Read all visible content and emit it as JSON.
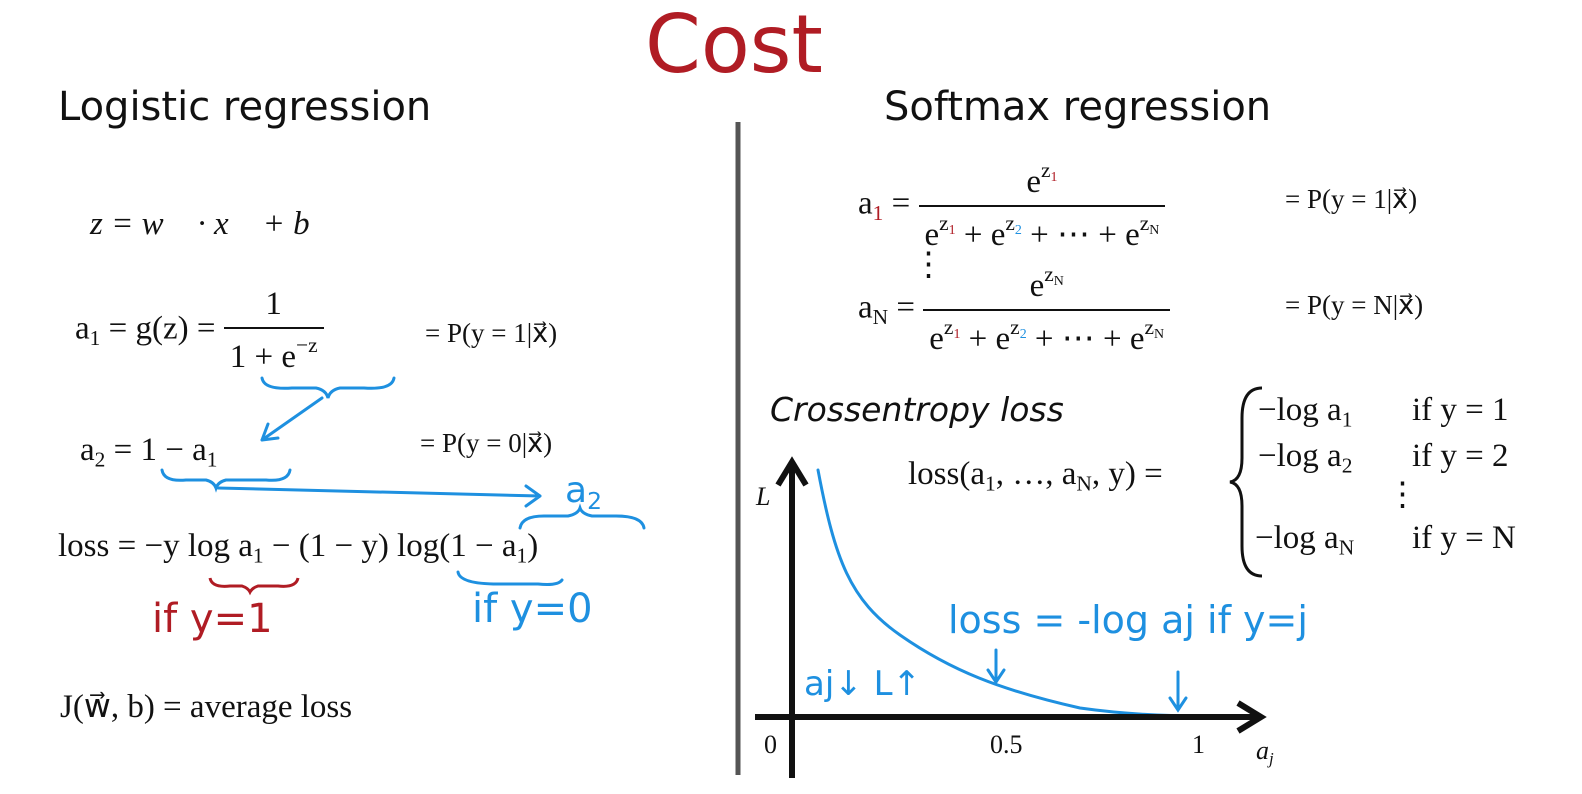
{
  "title": "Cost",
  "left": {
    "heading": "Logistic regression",
    "z": "z = w⃗ · x⃗ + b",
    "a1": {
      "lhs": [
        "a",
        "1",
        " = g(z) = "
      ],
      "num": "1",
      "den": [
        "1 + e",
        "−z"
      ],
      "prob": "= P(y = 1|x⃗)"
    },
    "a2": {
      "lhs": [
        "a",
        "2",
        " = 1 − a",
        "1"
      ],
      "prob": "= P(y = 0|x⃗)"
    },
    "loss": [
      "loss = −y log a",
      "1",
      " − (1 − y) log(1 − a",
      "1",
      ")"
    ],
    "note_a2": [
      "a",
      "2"
    ],
    "note_y1": "if y=1",
    "note_y0": "if y=0",
    "J": "J(w⃗, b) = average loss"
  },
  "right": {
    "heading": "Softmax regression",
    "a1": {
      "lhs": [
        "a",
        "1",
        " ="
      ],
      "num": [
        "e",
        "z",
        "1"
      ],
      "den": [
        "e",
        "z",
        "1",
        " + e",
        "z",
        "2",
        " + ⋯ + e",
        "z",
        "N"
      ],
      "prob": "= P(y = 1|x⃗)"
    },
    "dots": "⋮",
    "aN": {
      "lhs": [
        "a",
        "N",
        " ="
      ],
      "num": [
        "e",
        "z",
        "N"
      ],
      "den": [
        "e",
        "z",
        "1",
        " + e",
        "z",
        "2",
        " + ⋯ + e",
        "z",
        "N"
      ],
      "prob": "= P(y = N|x⃗)"
    },
    "crossentropy": "Crossentropy loss",
    "loss_fn": [
      "loss(a",
      "1",
      ", …, a",
      "N",
      ", y) ="
    ],
    "cases": [
      {
        "expr": [
          "−log a",
          "1"
        ],
        "cond": "if y = 1"
      },
      {
        "expr": [
          "−log a",
          "2"
        ],
        "cond": "if y = 2"
      },
      {
        "expr": [
          "−log a",
          "N"
        ],
        "cond": "if y = N"
      }
    ],
    "cases_dots": "⋮",
    "graph": {
      "y_label": "L",
      "x_label": [
        "a",
        "j"
      ],
      "ticks": [
        "0",
        "0.5",
        "1"
      ],
      "note_loss": "loss = -log aj if y=j",
      "note_trend": "aj↓ L↑"
    }
  }
}
